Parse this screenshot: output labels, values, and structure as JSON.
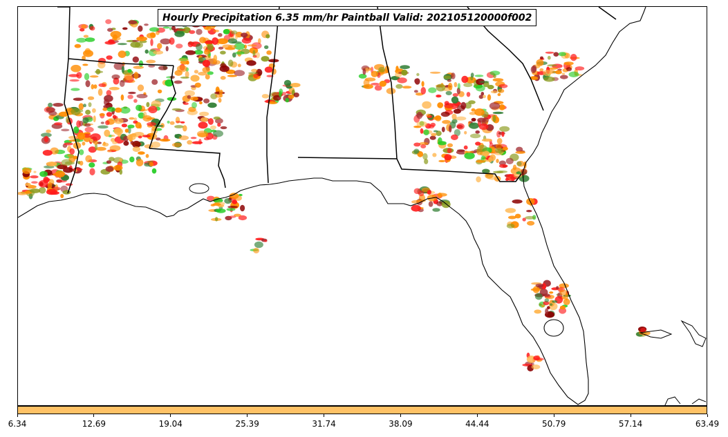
{
  "title": "Hourly Precipitation 6.35 mm/hr Paintball Valid: 202105120000f002",
  "colorbar": {
    "color": "#ffc266",
    "ticks": [
      "6.34",
      "12.69",
      "19.04",
      "25.39",
      "31.74",
      "38.09",
      "44.44",
      "50.79",
      "57.14",
      "63.49"
    ],
    "range": [
      6.34,
      63.49
    ]
  },
  "palette": {
    "orange": "#ff8c00",
    "light_orange": "#ffb347",
    "red": "#ff1a1a",
    "dark_red": "#8b0000",
    "green": "#22cc22",
    "dark_green": "#2e7d32",
    "olive": "#8a9a1a",
    "brown_red": "#a0282d"
  }
}
